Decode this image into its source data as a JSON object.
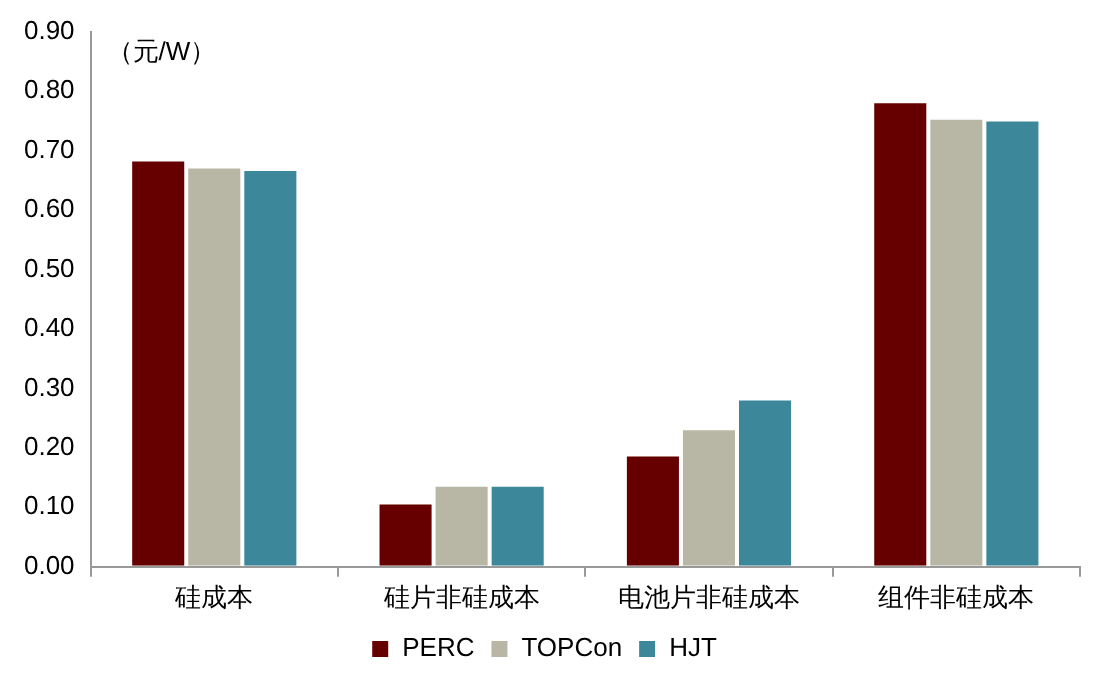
{
  "chart_data": {
    "type": "bar",
    "ylabel": "（元/W）",
    "categories": [
      "硅成本",
      "硅片非硅成本",
      "电池片非硅成本",
      "组件非硅成本"
    ],
    "series": [
      {
        "name": "PERC",
        "color": "#660000",
        "values": [
          0.685,
          0.108,
          0.189,
          0.783
        ]
      },
      {
        "name": "TOPCon",
        "color": "#b8b7a6",
        "values": [
          0.673,
          0.138,
          0.233,
          0.755
        ]
      },
      {
        "name": "HJT",
        "color": "#3d879b",
        "values": [
          0.669,
          0.138,
          0.283,
          0.752
        ]
      }
    ],
    "ylim": [
      0,
      0.9
    ],
    "yticks": [
      {
        "value": 0,
        "label": "0.00"
      },
      {
        "value": 0.1,
        "label": "0.10"
      },
      {
        "value": 0.2,
        "label": "0.20"
      },
      {
        "value": 0.3,
        "label": "0.30"
      },
      {
        "value": 0.4,
        "label": "0.40"
      },
      {
        "value": 0.5,
        "label": "0.50"
      },
      {
        "value": 0.6,
        "label": "0.60"
      },
      {
        "value": 0.7,
        "label": "0.70"
      },
      {
        "value": 0.8,
        "label": "0.80"
      },
      {
        "value": 0.9,
        "label": "0.90"
      }
    ],
    "grid": false,
    "legend": "bottom"
  }
}
